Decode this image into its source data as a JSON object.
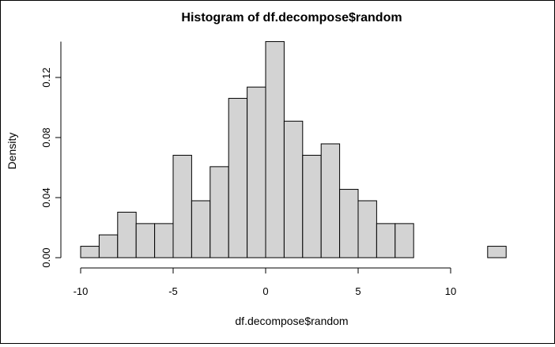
{
  "chart_data": {
    "type": "bar",
    "title": "Histogram of df.decompose$random",
    "xlabel": "df.decompose$random",
    "ylabel": "Density",
    "bin_width": 1,
    "bins": [
      {
        "start": -10,
        "end": -9,
        "density": 0.0076
      },
      {
        "start": -9,
        "end": -8,
        "density": 0.0152
      },
      {
        "start": -8,
        "end": -7,
        "density": 0.0303
      },
      {
        "start": -7,
        "end": -6,
        "density": 0.0227
      },
      {
        "start": -6,
        "end": -5,
        "density": 0.0227
      },
      {
        "start": -5,
        "end": -4,
        "density": 0.0682
      },
      {
        "start": -4,
        "end": -3,
        "density": 0.0379
      },
      {
        "start": -3,
        "end": -2,
        "density": 0.0606
      },
      {
        "start": -2,
        "end": -1,
        "density": 0.1061
      },
      {
        "start": -1,
        "end": 0,
        "density": 0.1136
      },
      {
        "start": 0,
        "end": 1,
        "density": 0.1439
      },
      {
        "start": 1,
        "end": 2,
        "density": 0.0909
      },
      {
        "start": 2,
        "end": 3,
        "density": 0.0682
      },
      {
        "start": 3,
        "end": 4,
        "density": 0.0758
      },
      {
        "start": 4,
        "end": 5,
        "density": 0.0455
      },
      {
        "start": 5,
        "end": 6,
        "density": 0.0379
      },
      {
        "start": 6,
        "end": 7,
        "density": 0.0227
      },
      {
        "start": 7,
        "end": 8,
        "density": 0.0227
      },
      {
        "start": 8,
        "end": 9,
        "density": 0
      },
      {
        "start": 9,
        "end": 10,
        "density": 0
      },
      {
        "start": 10,
        "end": 11,
        "density": 0
      },
      {
        "start": 11,
        "end": 12,
        "density": 0
      },
      {
        "start": 12,
        "end": 13,
        "density": 0.0076
      }
    ],
    "xlim": [
      -10,
      13
    ],
    "ylim": [
      0,
      0.1439
    ],
    "x_ticks": [
      -10,
      -5,
      0,
      5,
      10
    ],
    "x_tick_labels": [
      "-10",
      "-5",
      "0",
      "5",
      "10"
    ],
    "y_ticks": [
      0,
      0.04,
      0.08,
      0.12
    ],
    "y_tick_labels": [
      "0.00",
      "0.04",
      "0.08",
      "0.12"
    ],
    "grid": false,
    "legend": "none",
    "colors": {
      "bar_fill": "#d3d3d3",
      "bar_stroke": "#000000",
      "axis": "#000000"
    }
  }
}
